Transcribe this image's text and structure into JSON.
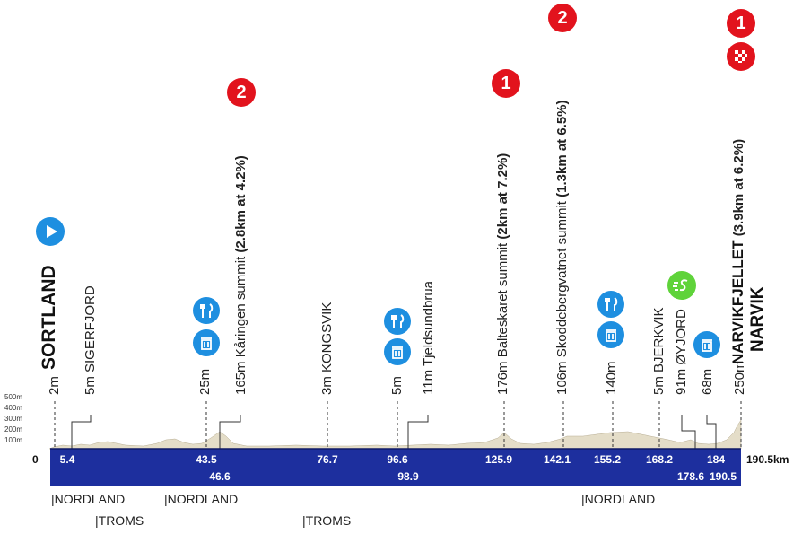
{
  "start": {
    "town": "SORTLAND",
    "alt": "2m"
  },
  "finish": {
    "climb_name": "NARVIKFJELLET",
    "climb_detail": "(3.9km at 6.2%)",
    "town": "NARVIK",
    "alt": "250m"
  },
  "places": [
    {
      "km": 5.4,
      "label": "5m SIGERFJORD"
    },
    {
      "km": 43.5,
      "label": "25m"
    },
    {
      "km": 46.6,
      "label_pre": "165m Kåringen summit ",
      "label_bold": "(2.8km at 4.2%)"
    },
    {
      "km": 76.7,
      "label": "3m KONGSVIK"
    },
    {
      "km": 96.6,
      "label": "5m"
    },
    {
      "km": 98.9,
      "label": "11m Tjeldsundbrua"
    },
    {
      "km": 125.9,
      "label_pre": "176m Balteskaret summit ",
      "label_bold": "(2km at 7.2%)"
    },
    {
      "km": 142.1,
      "label_pre": "106m Skoddebergvatnet summit ",
      "label_bold": "(1.3km at 6.5%)"
    },
    {
      "km": 155.2,
      "label": "140m"
    },
    {
      "km": 168.2,
      "label": "5m BJERKVIK"
    },
    {
      "km": 178.6,
      "label": "91m ØYJORD"
    },
    {
      "km": 184,
      "label": "68m"
    }
  ],
  "km_top": [
    "5.4",
    "43.5",
    "76.7",
    "96.6",
    "125.9",
    "142.1",
    "155.2",
    "168.2",
    "184"
  ],
  "km_bottom": [
    "46.6",
    "98.9",
    "178.6",
    "190.5"
  ],
  "zero_label": "0",
  "total_distance": "190.5km",
  "altitude_ticks": [
    "500m",
    "400m",
    "300m",
    "200m",
    "100m"
  ],
  "climb_categories": [
    "2",
    "1",
    "2",
    "1"
  ],
  "regions_row1": [
    "|NORDLAND",
    "|NORDLAND",
    "|NORDLAND"
  ],
  "regions_row2": [
    "|TROMS",
    "|TROMS"
  ],
  "colors": {
    "bar": "#1d2f9e",
    "badge": "#e2131d",
    "icon": "#1e8fe0",
    "sprint": "#5fd33a",
    "profile": "#e4ddc8"
  },
  "icons": [
    "start-play-icon",
    "feed-zone-icon",
    "waste-zone-icon",
    "sprint-icon",
    "finish-flag-icon"
  ]
}
